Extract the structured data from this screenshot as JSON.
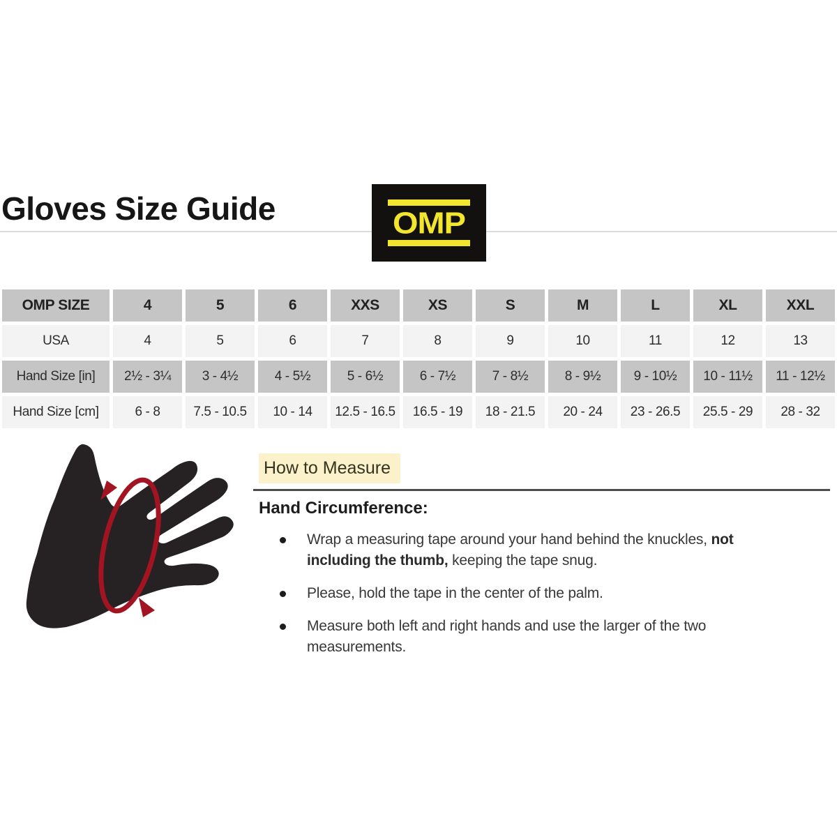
{
  "header": {
    "title": "Gloves Size Guide",
    "logo_text": "OMP"
  },
  "size_table": {
    "header": [
      "OMP SIZE",
      "4",
      "5",
      "6",
      "XXS",
      "XS",
      "S",
      "M",
      "L",
      "XL",
      "XXL"
    ],
    "rows": [
      {
        "label": "USA",
        "values": [
          "4",
          "5",
          "6",
          "7",
          "8",
          "9",
          "10",
          "11",
          "12",
          "13"
        ]
      },
      {
        "label": "Hand Size [in]",
        "values": [
          "2½ - 3¼",
          "3 - 4½",
          "4 - 5½",
          "5 - 6½",
          "6 - 7½",
          "7 - 8½",
          "8 - 9½",
          "9 - 10½",
          "10 - 11½",
          "11 - 12½"
        ]
      },
      {
        "label": "Hand Size [cm]",
        "values": [
          "6 - 8",
          "7.5 - 10.5",
          "10 - 14",
          "12.5 - 16.5",
          "16.5 - 19",
          "18 - 21.5",
          "20 - 24",
          "23 - 26.5",
          "25.5 - 29",
          "28 - 32"
        ]
      }
    ]
  },
  "measure": {
    "heading": "How to Measure",
    "subheading": "Hand Circumference:",
    "bullets": [
      {
        "parts": [
          {
            "t": "Wrap a measuring tape around your hand behind the knuckles, ",
            "b": false
          },
          {
            "t": "not including the thumb,",
            "b": true
          },
          {
            "t": " keeping the tape snug.",
            "b": false
          }
        ]
      },
      {
        "parts": [
          {
            "t": "Please, hold the tape in the center of the palm.",
            "b": false
          }
        ]
      },
      {
        "parts": [
          {
            "t": "Measure both left and right hands and use the larger of the two measurements.",
            "b": false
          }
        ]
      }
    ]
  },
  "hand_figure": {
    "name": "hand-with-measuring-tape",
    "hand_color": "#262223",
    "tape_color": "#a21421"
  },
  "colors": {
    "accent_yellow": "#f2e52e",
    "logo_black": "#121110",
    "table_gray": "#c5c5c5",
    "table_light": "#f3f3f3",
    "highlight_yellow": "#fbf2cb",
    "divider_light": "#dcdcdc",
    "divider_dark": "#4c4c4c"
  }
}
